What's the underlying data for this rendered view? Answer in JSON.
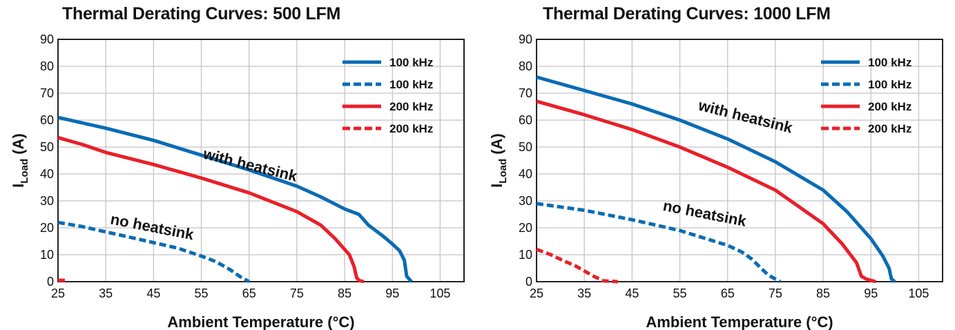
{
  "chart_data": [
    {
      "type": "line",
      "title": "Thermal Derating Curves: 500 LFM",
      "xlabel": "Ambient Temperature (°C)",
      "ylabel_main": "I",
      "ylabel_sub": "Load",
      "ylabel_unit": " (A)",
      "xlim": [
        25,
        110
      ],
      "ylim": [
        0,
        90
      ],
      "xticks": [
        25,
        35,
        45,
        55,
        65,
        75,
        85,
        95,
        105
      ],
      "yticks": [
        0,
        10,
        20,
        30,
        40,
        50,
        60,
        70,
        80,
        90
      ],
      "grid": true,
      "legend_position": "top-right",
      "annotations": [
        {
          "text": "with heatsink",
          "x": 65,
          "y": 41.5,
          "angle": 14
        },
        {
          "text": "no heatsink",
          "x": 44.5,
          "y": 18.5,
          "angle": 11
        }
      ],
      "series": [
        {
          "name": "100 kHz",
          "color": "#0a6cb4",
          "dashed": false,
          "points": [
            [
              25,
              61
            ],
            [
              35,
              57
            ],
            [
              45,
              52.5
            ],
            [
              55,
              47
            ],
            [
              65,
              41.5
            ],
            [
              75,
              35.5
            ],
            [
              80,
              31.5
            ],
            [
              85,
              27
            ],
            [
              88,
              25
            ],
            [
              90,
              21
            ],
            [
              93,
              17
            ],
            [
              95,
              14
            ],
            [
              96.5,
              11.5
            ],
            [
              97.5,
              8
            ],
            [
              98,
              2
            ],
            [
              99,
              0
            ]
          ]
        },
        {
          "name": "100 kHz",
          "color": "#0a6cb4",
          "dashed": true,
          "points": [
            [
              25,
              22
            ],
            [
              30,
              20.5
            ],
            [
              35,
              18.5
            ],
            [
              40,
              16.5
            ],
            [
              45,
              14.5
            ],
            [
              50,
              12.5
            ],
            [
              55,
              9.5
            ],
            [
              58,
              7.5
            ],
            [
              61,
              4.5
            ],
            [
              63,
              2
            ],
            [
              65,
              0
            ]
          ]
        },
        {
          "name": "200 kHz",
          "color": "#e8202a",
          "dashed": false,
          "points": [
            [
              25,
              53.5
            ],
            [
              30,
              51
            ],
            [
              35,
              48
            ],
            [
              45,
              43.5
            ],
            [
              55,
              38.5
            ],
            [
              65,
              33
            ],
            [
              75,
              26
            ],
            [
              80,
              21
            ],
            [
              83,
              16
            ],
            [
              86,
              10
            ],
            [
              87,
              5.5
            ],
            [
              87.5,
              1.5
            ],
            [
              88,
              0.5
            ],
            [
              89,
              0
            ]
          ]
        },
        {
          "name": "200 kHz",
          "color": "#e8202a",
          "dashed": true,
          "points": [
            [
              25,
              0.5
            ],
            [
              27,
              0.5
            ]
          ]
        }
      ]
    },
    {
      "type": "line",
      "title": "Thermal Derating Curves: 1000 LFM",
      "xlabel": "Ambient Temperature (°C)",
      "ylabel_main": "I",
      "ylabel_sub": "Load",
      "ylabel_unit": " (A)",
      "xlim": [
        25,
        110
      ],
      "ylim": [
        0,
        90
      ],
      "xticks": [
        25,
        35,
        45,
        55,
        65,
        75,
        85,
        95,
        105
      ],
      "yticks": [
        0,
        10,
        20,
        30,
        40,
        50,
        60,
        70,
        80,
        90
      ],
      "grid": true,
      "legend_position": "top-right",
      "annotations": [
        {
          "text": "with heatsink",
          "x": 68.5,
          "y": 59.5,
          "angle": 14
        },
        {
          "text": "no heatsink",
          "x": 60,
          "y": 23.5,
          "angle": 11
        }
      ],
      "series": [
        {
          "name": "100 kHz",
          "color": "#0a6cb4",
          "dashed": false,
          "points": [
            [
              25,
              76
            ],
            [
              35,
              71
            ],
            [
              45,
              66
            ],
            [
              55,
              60
            ],
            [
              65,
              53
            ],
            [
              75,
              44.5
            ],
            [
              85,
              34
            ],
            [
              90,
              26
            ],
            [
              95,
              16
            ],
            [
              97.5,
              9.5
            ],
            [
              98.8,
              5
            ],
            [
              99.3,
              1
            ],
            [
              100,
              0
            ]
          ]
        },
        {
          "name": "100 kHz",
          "color": "#0a6cb4",
          "dashed": true,
          "points": [
            [
              25,
              29
            ],
            [
              35,
              26.5
            ],
            [
              45,
              23
            ],
            [
              55,
              19
            ],
            [
              65,
              13.5
            ],
            [
              68,
              11
            ],
            [
              70,
              8.5
            ],
            [
              72,
              5
            ],
            [
              73.5,
              2.5
            ],
            [
              76,
              0
            ]
          ]
        },
        {
          "name": "200 kHz",
          "color": "#e8202a",
          "dashed": false,
          "points": [
            [
              25,
              67
            ],
            [
              35,
              62
            ],
            [
              45,
              56.5
            ],
            [
              55,
              50
            ],
            [
              65,
              42.5
            ],
            [
              75,
              34
            ],
            [
              85,
              21.5
            ],
            [
              89,
              14
            ],
            [
              92,
              7
            ],
            [
              93,
              2
            ],
            [
              94,
              1
            ],
            [
              96,
              0
            ]
          ]
        },
        {
          "name": "200 kHz",
          "color": "#e8202a",
          "dashed": true,
          "points": [
            [
              25,
              12
            ],
            [
              28,
              10
            ],
            [
              31,
              7.5
            ],
            [
              33,
              6
            ],
            [
              35,
              4
            ],
            [
              37,
              2
            ],
            [
              39,
              0.3
            ],
            [
              42,
              0
            ]
          ]
        }
      ]
    }
  ]
}
